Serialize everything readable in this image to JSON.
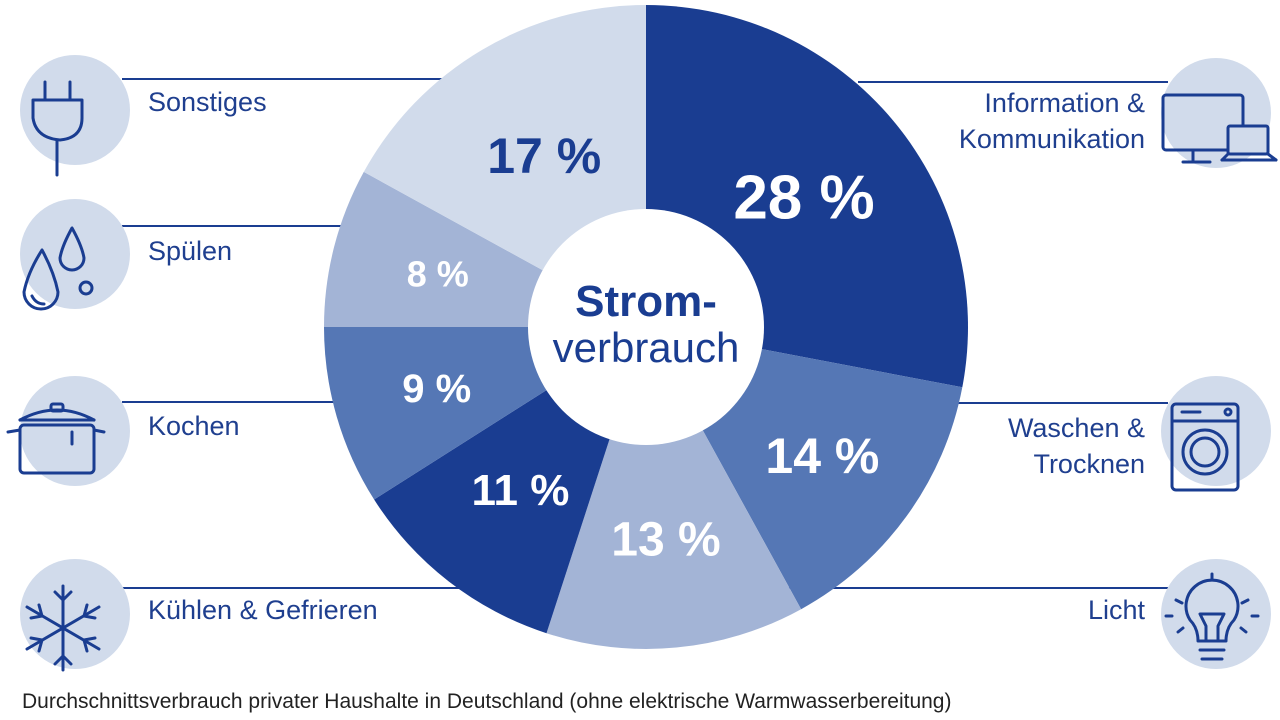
{
  "chart_data": {
    "type": "pie",
    "center_label_line1": "Strom-",
    "center_label_line2": "verbrauch",
    "slices": [
      {
        "label": "Information & Kommunikation",
        "label_lines": [
          "Information &",
          "Kommunikation"
        ],
        "value": 28,
        "value_label": "28 %",
        "color": "#1a3d91",
        "text_color": "#ffffff",
        "icon": "devices-icon"
      },
      {
        "label": "Waschen & Trocknen",
        "label_lines": [
          "Waschen &",
          "Trocknen"
        ],
        "value": 14,
        "value_label": "14 %",
        "color": "#5577b5",
        "text_color": "#ffffff",
        "icon": "washing-machine-icon"
      },
      {
        "label": "Licht",
        "label_lines": [
          "Licht"
        ],
        "value": 13,
        "value_label": "13 %",
        "color": "#a3b4d6",
        "text_color": "#ffffff",
        "icon": "light-bulb-icon"
      },
      {
        "label": "Kühlen & Gefrieren",
        "label_lines": [
          "Kühlen & Gefrieren"
        ],
        "value": 11,
        "value_label": "11 %",
        "color": "#1a3d91",
        "text_color": "#ffffff",
        "icon": "snowflake-icon"
      },
      {
        "label": "Kochen",
        "label_lines": [
          "Kochen"
        ],
        "value": 9,
        "value_label": "9 %",
        "color": "#5577b5",
        "text_color": "#ffffff",
        "icon": "cooking-pot-icon"
      },
      {
        "label": "Spülen",
        "label_lines": [
          "Spülen"
        ],
        "value": 8,
        "value_label": "8 %",
        "color": "#a3b4d6",
        "text_color": "#ffffff",
        "icon": "water-drops-icon"
      },
      {
        "label": "Sonstiges",
        "label_lines": [
          "Sonstiges"
        ],
        "value": 17,
        "value_label": "17 %",
        "color": "#d1dbeb",
        "text_color": "#1a3d91",
        "icon": "power-plug-icon"
      }
    ],
    "caption": "Durchschnittsverbrauch privater Haushalte in Deutschland (ohne elektrische Warmwasserbereitung)"
  },
  "colors": {
    "dark_blue": "#1a3d91",
    "icon_circle": "#d1dbeb",
    "leader_line": "#1a3d91"
  }
}
